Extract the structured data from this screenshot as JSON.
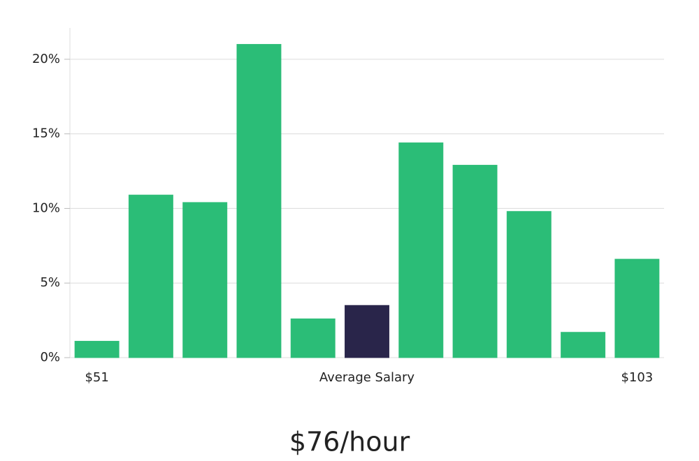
{
  "chart_data": {
    "type": "bar",
    "categories": [
      "$51",
      null,
      null,
      null,
      null,
      "Average Salary",
      null,
      null,
      null,
      null,
      "$103"
    ],
    "values": [
      1.1,
      10.9,
      10.4,
      21.0,
      2.6,
      3.5,
      14.4,
      12.9,
      9.8,
      1.7,
      6.6
    ],
    "colors": [
      "#2bbd77",
      "#2bbd77",
      "#2bbd77",
      "#2bbd77",
      "#2bbd77",
      "#29254a",
      "#2bbd77",
      "#2bbd77",
      "#2bbd77",
      "#2bbd77",
      "#2bbd77"
    ],
    "ylim": [
      0,
      22.1
    ],
    "yticks": [
      {
        "value": 0,
        "label": "0%"
      },
      {
        "value": 5,
        "label": "5%"
      },
      {
        "value": 10,
        "label": "10%"
      },
      {
        "value": 15,
        "label": "15%"
      },
      {
        "value": 20,
        "label": "20%"
      }
    ],
    "grid": true,
    "annotation": "$76/hour"
  }
}
